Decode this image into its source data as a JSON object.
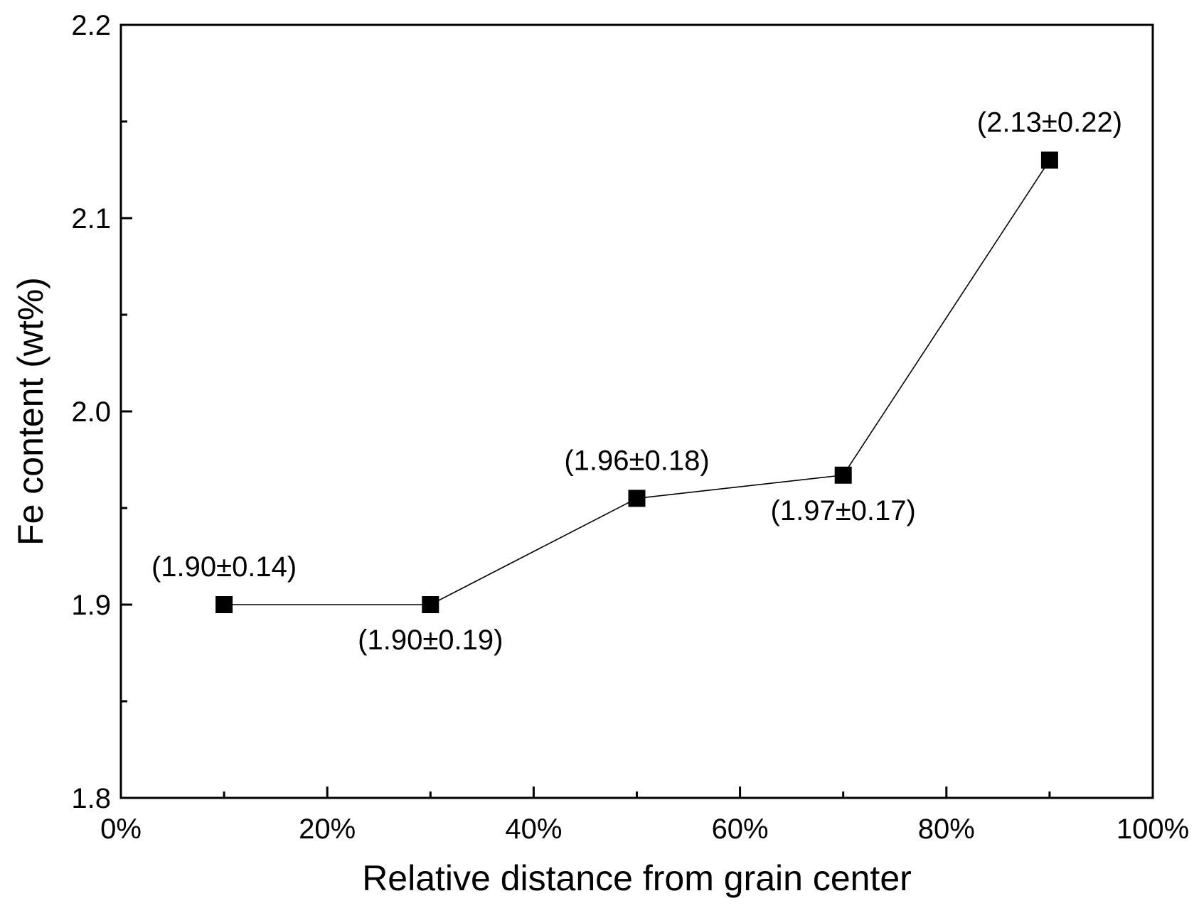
{
  "chart_data": {
    "type": "line",
    "title": "",
    "xlabel": "Relative distance from grain center",
    "ylabel": "Fe content (wt%)",
    "xlim": [
      0,
      100
    ],
    "ylim": [
      1.8,
      2.2
    ],
    "x_ticks": [
      {
        "value": 0,
        "label": "0%"
      },
      {
        "value": 20,
        "label": "20%"
      },
      {
        "value": 40,
        "label": "40%"
      },
      {
        "value": 60,
        "label": "60%"
      },
      {
        "value": 80,
        "label": "80%"
      },
      {
        "value": 100,
        "label": "100%"
      }
    ],
    "y_ticks": [
      {
        "value": 1.8,
        "label": "1.8"
      },
      {
        "value": 1.9,
        "label": "1.9"
      },
      {
        "value": 2.0,
        "label": "2.0"
      },
      {
        "value": 2.1,
        "label": "2.1"
      },
      {
        "value": 2.2,
        "label": "2.2"
      }
    ],
    "grid": false,
    "legend": "none",
    "series": [
      {
        "name": "Fe content",
        "marker": "square",
        "color": "#000000",
        "points": [
          {
            "x": 10,
            "y": 1.9,
            "label": "(1.90±0.14)",
            "label_position": "above"
          },
          {
            "x": 30,
            "y": 1.9,
            "label": "(1.90±0.19)",
            "label_position": "below"
          },
          {
            "x": 50,
            "y": 1.955,
            "label": "(1.96±0.18)",
            "label_position": "above"
          },
          {
            "x": 70,
            "y": 1.967,
            "label": "(1.97±0.17)",
            "label_position": "below"
          },
          {
            "x": 90,
            "y": 2.13,
            "label": "(2.13±0.22)",
            "label_position": "above"
          }
        ]
      }
    ]
  }
}
